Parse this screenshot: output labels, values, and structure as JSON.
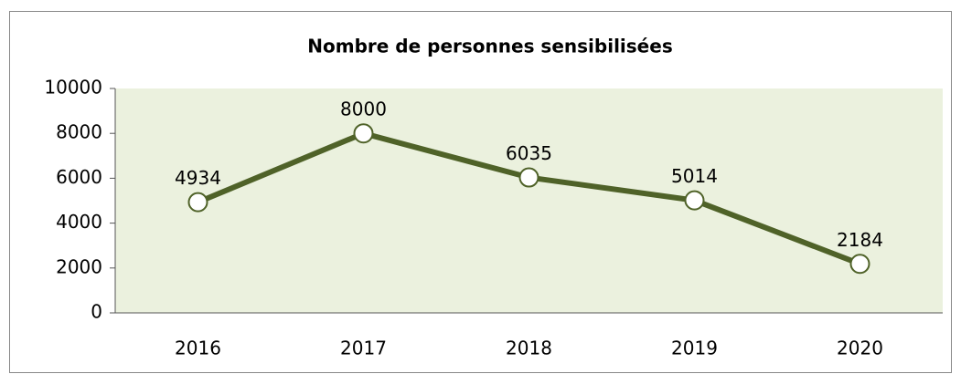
{
  "chart_data": {
    "type": "line",
    "title": "Nombre de personnes sensibilisées",
    "categories": [
      "2016",
      "2017",
      "2018",
      "2019",
      "2020"
    ],
    "values": [
      4934,
      8000,
      6035,
      5014,
      2184
    ],
    "color": "#4f6228",
    "plot_background": "#ebf1de",
    "ylim": [
      0,
      10000
    ],
    "yticks": [
      0,
      2000,
      4000,
      6000,
      8000,
      10000
    ],
    "grid": false
  }
}
